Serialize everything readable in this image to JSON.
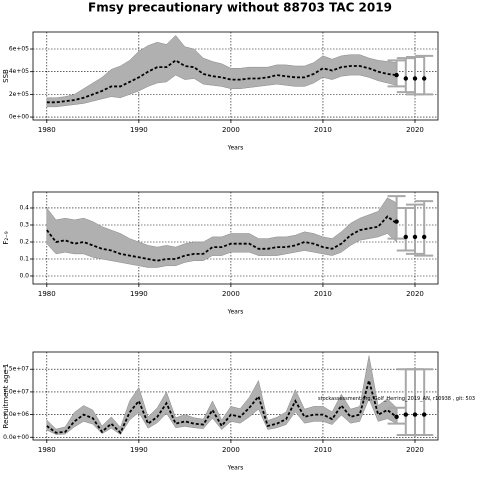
{
  "title": "Fmsy precautionary without 88703 TAC 2019",
  "chart_data": [
    {
      "type": "line",
      "y_label": "SSB",
      "x_label": "Years",
      "band_color": "#b0b0b0",
      "color": "#000000",
      "proj_color": "#a8a8a8",
      "x": [
        1980,
        1981,
        1982,
        1983,
        1984,
        1985,
        1986,
        1987,
        1988,
        1989,
        1990,
        1991,
        1992,
        1993,
        1994,
        1995,
        1996,
        1997,
        1998,
        1999,
        2000,
        2001,
        2002,
        2003,
        2004,
        2005,
        2006,
        2007,
        2008,
        2009,
        2010,
        2011,
        2012,
        2013,
        2014,
        2015,
        2016,
        2017,
        2018
      ],
      "values": [
        130000,
        130000,
        140000,
        150000,
        170000,
        200000,
        230000,
        270000,
        270000,
        310000,
        350000,
        400000,
        440000,
        440000,
        500000,
        450000,
        440000,
        380000,
        360000,
        350000,
        330000,
        330000,
        340000,
        340000,
        350000,
        370000,
        360000,
        350000,
        350000,
        380000,
        430000,
        410000,
        440000,
        450000,
        450000,
        430000,
        400000,
        380000,
        370000
      ],
      "upper": [
        170000,
        170000,
        180000,
        200000,
        250000,
        300000,
        350000,
        420000,
        450000,
        500000,
        580000,
        630000,
        660000,
        640000,
        720000,
        620000,
        600000,
        520000,
        490000,
        470000,
        430000,
        430000,
        440000,
        440000,
        440000,
        460000,
        460000,
        450000,
        450000,
        480000,
        540000,
        510000,
        540000,
        550000,
        550000,
        520000,
        500000,
        490000,
        480000
      ],
      "lower": [
        90000,
        90000,
        100000,
        110000,
        120000,
        140000,
        160000,
        180000,
        170000,
        200000,
        230000,
        270000,
        300000,
        310000,
        370000,
        330000,
        340000,
        290000,
        280000,
        270000,
        250000,
        250000,
        260000,
        270000,
        280000,
        290000,
        280000,
        270000,
        270000,
        300000,
        350000,
        330000,
        360000,
        370000,
        370000,
        350000,
        320000,
        300000,
        280000
      ],
      "proj_x": [
        2018,
        2019,
        2020,
        2021
      ],
      "proj_values": [
        370000,
        340000,
        340000,
        340000
      ],
      "proj_lower": [
        270000,
        220000,
        200000,
        200000
      ],
      "proj_upper": [
        500000,
        520000,
        530000,
        540000
      ],
      "xlim": [
        1978.5,
        2022.5
      ],
      "xticks": [
        1980,
        1990,
        2000,
        2010,
        2020
      ],
      "ylim": [
        -26000,
        750000
      ],
      "yticks": [
        {
          "value": 0,
          "label": "0e+00"
        },
        {
          "value": 200000,
          "label": "2e+05"
        },
        {
          "value": 400000,
          "label": "4e+05"
        },
        {
          "value": 600000,
          "label": "6e+05"
        }
      ],
      "grid": true
    },
    {
      "type": "line",
      "y_label": "F₂₋₉",
      "x_label": "Years",
      "band_color": "#b0b0b0",
      "color": "#000000",
      "proj_color": "#a8a8a8",
      "x": [
        1980,
        1981,
        1982,
        1983,
        1984,
        1985,
        1986,
        1987,
        1988,
        1989,
        1990,
        1991,
        1992,
        1993,
        1994,
        1995,
        1996,
        1997,
        1998,
        1999,
        2000,
        2001,
        2002,
        2003,
        2004,
        2005,
        2006,
        2007,
        2008,
        2009,
        2010,
        2011,
        2012,
        2013,
        2014,
        2015,
        2016,
        2017,
        2018
      ],
      "values": [
        0.27,
        0.2,
        0.21,
        0.19,
        0.2,
        0.18,
        0.16,
        0.15,
        0.13,
        0.12,
        0.11,
        0.1,
        0.09,
        0.1,
        0.1,
        0.12,
        0.13,
        0.13,
        0.17,
        0.17,
        0.19,
        0.19,
        0.19,
        0.16,
        0.16,
        0.17,
        0.17,
        0.18,
        0.2,
        0.19,
        0.17,
        0.16,
        0.19,
        0.24,
        0.27,
        0.28,
        0.29,
        0.35,
        0.31
      ],
      "upper": [
        0.4,
        0.33,
        0.34,
        0.33,
        0.34,
        0.32,
        0.29,
        0.27,
        0.25,
        0.22,
        0.2,
        0.18,
        0.17,
        0.18,
        0.17,
        0.19,
        0.2,
        0.2,
        0.23,
        0.23,
        0.25,
        0.25,
        0.25,
        0.22,
        0.22,
        0.23,
        0.23,
        0.24,
        0.26,
        0.25,
        0.23,
        0.22,
        0.26,
        0.31,
        0.34,
        0.36,
        0.38,
        0.46,
        0.43
      ],
      "lower": [
        0.19,
        0.13,
        0.14,
        0.13,
        0.13,
        0.11,
        0.1,
        0.09,
        0.08,
        0.07,
        0.06,
        0.05,
        0.05,
        0.06,
        0.06,
        0.08,
        0.09,
        0.09,
        0.12,
        0.12,
        0.14,
        0.14,
        0.14,
        0.12,
        0.12,
        0.12,
        0.13,
        0.14,
        0.15,
        0.14,
        0.13,
        0.12,
        0.14,
        0.18,
        0.21,
        0.22,
        0.23,
        0.25,
        0.2
      ],
      "proj_x": [
        2018,
        2019,
        2020,
        2021
      ],
      "proj_values": [
        0.32,
        0.23,
        0.23,
        0.23
      ],
      "proj_lower": [
        0.22,
        0.15,
        0.13,
        0.12
      ],
      "proj_upper": [
        0.47,
        0.4,
        0.42,
        0.44
      ],
      "xlim": [
        1978.5,
        2022.5
      ],
      "xticks": [
        1980,
        1990,
        2000,
        2010,
        2020
      ],
      "ylim": [
        -0.047,
        0.494
      ],
      "yticks": [
        {
          "value": 0,
          "label": "0.0"
        },
        0.1,
        0.2,
        0.3,
        0.4
      ],
      "grid": true
    },
    {
      "type": "line",
      "y_label": "Recruitment age 1",
      "x_label": "Years",
      "band_color": "#b0b0b0",
      "color": "#000000",
      "proj_color": "#a8a8a8",
      "annotation": "stockassessment.org, Golf_Herring_2019_AN, r10938 , git: 503",
      "x": [
        1980,
        1981,
        1982,
        1983,
        1984,
        1985,
        1986,
        1987,
        1988,
        1989,
        1990,
        1991,
        1992,
        1993,
        1994,
        1995,
        1996,
        1997,
        1998,
        1999,
        2000,
        2001,
        2002,
        2003,
        2004,
        2005,
        2006,
        2007,
        2008,
        2009,
        2010,
        2011,
        2012,
        2013,
        2014,
        2015,
        2016,
        2017,
        2018
      ],
      "values": [
        2500000,
        1000000,
        1200000,
        3500000,
        5000000,
        4200000,
        1200000,
        3000000,
        1000000,
        5500000,
        8000000,
        3000000,
        4500000,
        7500000,
        3000000,
        3500000,
        3000000,
        2800000,
        6000000,
        2500000,
        5000000,
        4500000,
        6500000,
        9000000,
        2500000,
        3000000,
        4000000,
        8000000,
        4500000,
        5000000,
        5000000,
        4000000,
        7000000,
        4500000,
        5000000,
        12500000,
        5000000,
        6000000,
        4500000
      ],
      "upper": [
        3800000,
        1800000,
        2300000,
        5500000,
        7000000,
        6000000,
        2500000,
        4500000,
        2200000,
        8000000,
        11000000,
        4500000,
        6500000,
        10000000,
        4300000,
        5000000,
        4300000,
        4000000,
        8000000,
        3800000,
        6800000,
        6300000,
        8800000,
        12500000,
        3700000,
        4400000,
        5600000,
        10500000,
        6200000,
        6800000,
        6800000,
        5600000,
        9500000,
        6200000,
        6800000,
        18000000,
        7000000,
        8500000,
        6500000
      ],
      "lower": [
        1600000,
        600000,
        700000,
        2300000,
        3500000,
        2900000,
        800000,
        2000000,
        600000,
        3800000,
        5500000,
        2000000,
        3200000,
        5300000,
        2100000,
        2400000,
        2100000,
        1900000,
        4200000,
        1700000,
        3500000,
        3100000,
        4500000,
        6200000,
        1700000,
        2100000,
        2800000,
        5600000,
        3100000,
        3500000,
        3500000,
        2800000,
        4900000,
        3100000,
        3500000,
        8500000,
        3500000,
        4100000,
        3000000
      ],
      "proj_x": [
        2018,
        2019,
        2020,
        2021
      ],
      "proj_values": [
        4500000,
        5000000,
        5000000,
        5000000
      ],
      "proj_lower": [
        3000000,
        500000,
        500000,
        500000
      ],
      "proj_upper": [
        6500000,
        15000000,
        15000000,
        15000000
      ],
      "xlim": [
        1978.5,
        2022.5
      ],
      "xticks": [
        1980,
        1990,
        2000,
        2010,
        2020
      ],
      "ylim": [
        -600000,
        18800000
      ],
      "yticks": [
        {
          "value": 0,
          "label": "0.0e+00"
        },
        {
          "value": 5000000,
          "label": "5.0e+06"
        },
        {
          "value": 10000000,
          "label": "1.0e+07"
        },
        {
          "value": 15000000,
          "label": "1.5e+07"
        }
      ],
      "grid": true
    }
  ]
}
